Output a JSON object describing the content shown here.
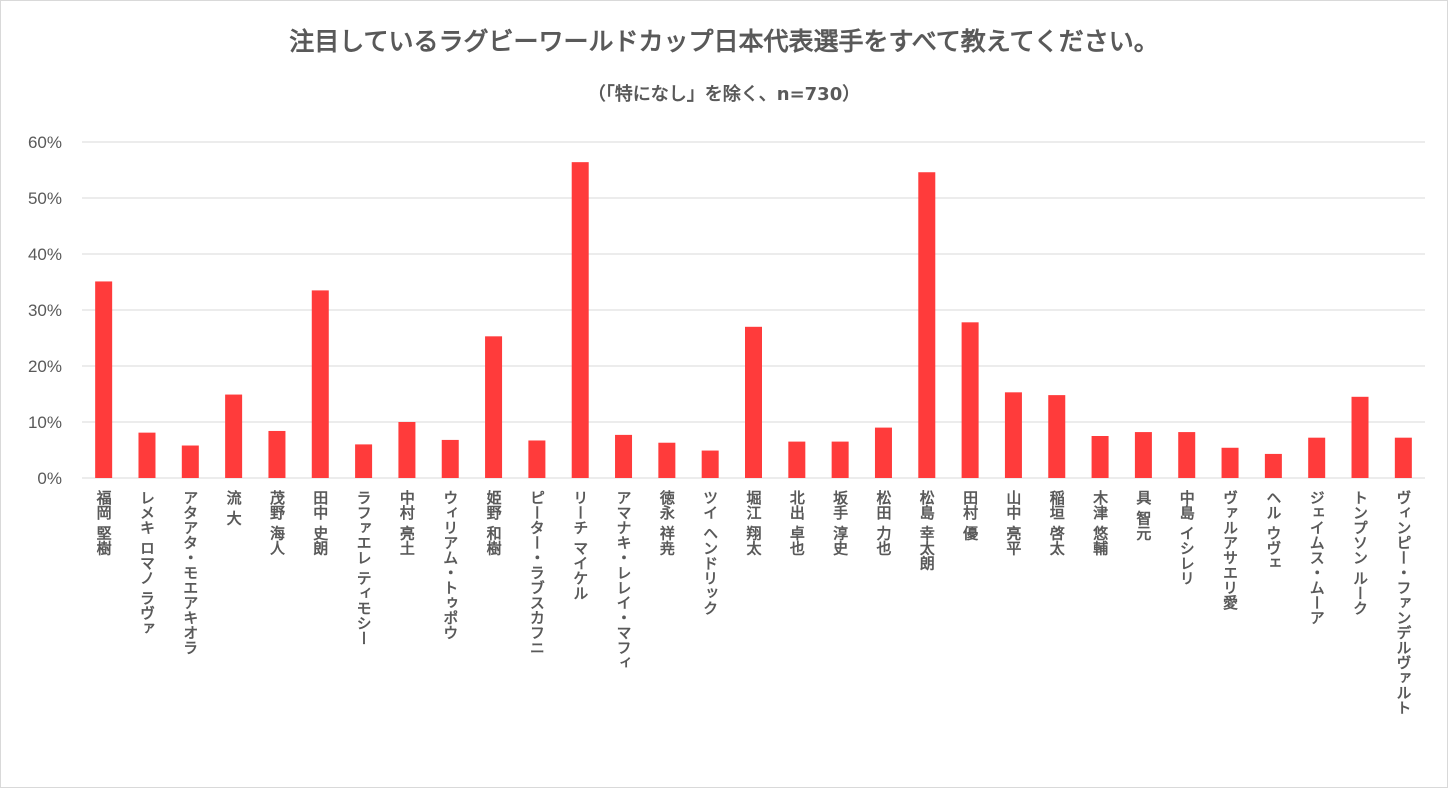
{
  "chart_data": {
    "type": "bar",
    "title": "注目しているラグビーワールドカップ日本代表選手をすべて教えてください。",
    "subtitle": "（「特になし」を除く、n=730）",
    "xlabel": "",
    "ylabel": "",
    "ylim": [
      0,
      60
    ],
    "yticks": [
      "0%",
      "10%",
      "20%",
      "30%",
      "40%",
      "50%",
      "60%"
    ],
    "grid": true,
    "legend": "none",
    "bar_color": "#ff3b3b",
    "categories": [
      "福岡 堅樹",
      "レメキ ロマノ ラヴァ",
      "アタアタ・モエアキオラ",
      "流 大",
      "茂野 海人",
      "田中 史朗",
      "ラファエレ ティモシー",
      "中村 亮土",
      "ウィリアム・トゥポウ",
      "姫野 和樹",
      "ピーター・ラブスカフニ",
      "リーチ マイケル",
      "アマナキ・レレイ・マフィ",
      "徳永 祥尭",
      "ツイ ヘンドリック",
      "堀江 翔太",
      "北出 卓也",
      "坂手 淳史",
      "松田 力也",
      "松島 幸太朗",
      "田村 優",
      "山中 亮平",
      "稲垣 啓太",
      "木津 悠輔",
      "具 智元",
      "中島 イシレリ",
      "ヴァルアサエリ愛",
      "ヘル ウヴェ",
      "ジェイムス・ムーア",
      "トンプソン ルーク",
      "ヴィンピー・ファンデルヴァルト"
    ],
    "values": [
      35.1,
      8.1,
      5.8,
      14.9,
      8.4,
      33.5,
      6.0,
      10.0,
      6.8,
      25.3,
      6.7,
      56.4,
      7.7,
      6.3,
      4.9,
      27.0,
      6.5,
      6.5,
      9.0,
      54.6,
      27.8,
      15.3,
      14.8,
      7.5,
      8.2,
      8.2,
      5.4,
      4.3,
      7.2,
      14.5,
      7.2
    ]
  }
}
